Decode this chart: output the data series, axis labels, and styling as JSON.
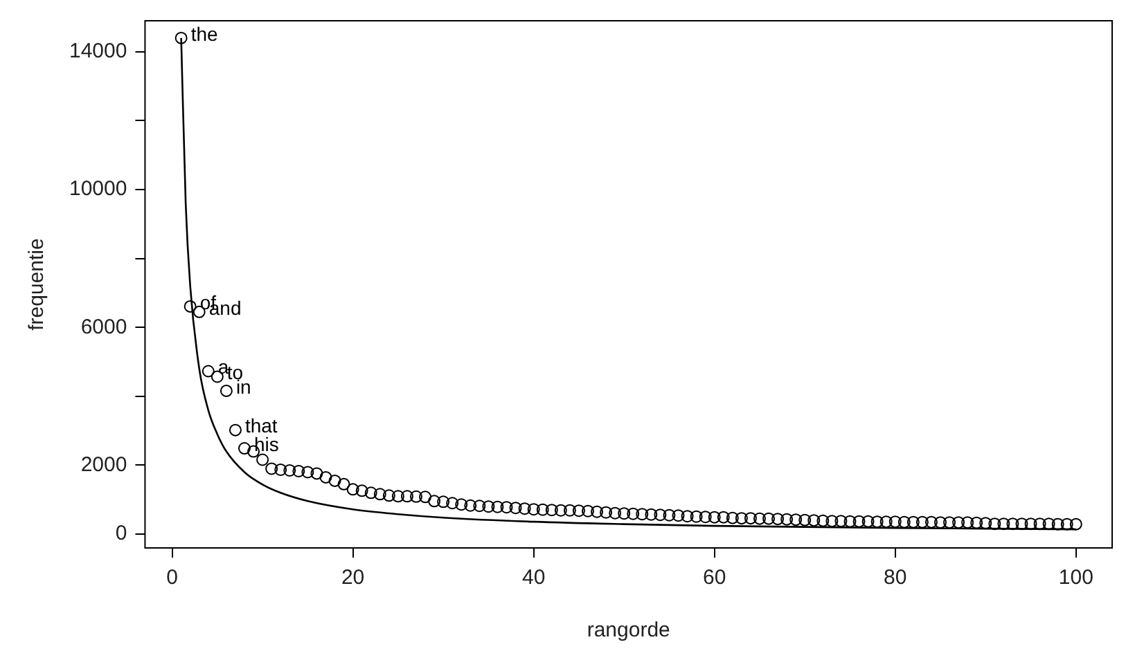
{
  "chart_data": {
    "type": "scatter",
    "xlabel": "rangorde",
    "ylabel": "frequentie",
    "xlim": [
      -3,
      104
    ],
    "xticks": [
      0,
      20,
      40,
      60,
      80,
      100
    ],
    "ylim": [
      -400,
      14900
    ],
    "yticks": [
      0,
      2000,
      {
        "value": 4000,
        "label": null
      },
      6000,
      {
        "value": 8000,
        "label": null
      },
      10000,
      {
        "value": 12000,
        "label": null
      },
      14000
    ],
    "grid": false,
    "legend": false,
    "marker": "circle",
    "series": [
      {
        "type": "scatter",
        "color": "#000000",
        "x": [
          1,
          2,
          3,
          4,
          5,
          6,
          7,
          8,
          9,
          10,
          11,
          12,
          13,
          14,
          15,
          16,
          17,
          18,
          19,
          20,
          21,
          22,
          23,
          24,
          25,
          26,
          27,
          28,
          29,
          30,
          31,
          32,
          33,
          34,
          35,
          36,
          37,
          38,
          39,
          40,
          41,
          42,
          43,
          44,
          45,
          46,
          47,
          48,
          49,
          50,
          51,
          52,
          53,
          54,
          55,
          56,
          57,
          58,
          59,
          60,
          61,
          62,
          63,
          64,
          65,
          66,
          67,
          68,
          69,
          70,
          71,
          72,
          73,
          74,
          75,
          76,
          77,
          78,
          79,
          80,
          81,
          82,
          83,
          84,
          85,
          86,
          87,
          88,
          89,
          90,
          91,
          92,
          93,
          94,
          95,
          96,
          97,
          98,
          99,
          100
        ],
        "values": [
          14400,
          6610,
          6450,
          4730,
          4570,
          4160,
          3020,
          2490,
          2400,
          2160,
          1900,
          1870,
          1850,
          1830,
          1800,
          1760,
          1650,
          1550,
          1450,
          1300,
          1260,
          1200,
          1160,
          1120,
          1100,
          1100,
          1090,
          1080,
          960,
          940,
          900,
          860,
          830,
          820,
          800,
          790,
          780,
          760,
          740,
          720,
          710,
          700,
          690,
          690,
          680,
          670,
          650,
          630,
          610,
          600,
          590,
          580,
          570,
          560,
          550,
          540,
          520,
          510,
          500,
          490,
          490,
          470,
          460,
          460,
          450,
          450,
          440,
          430,
          420,
          410,
          400,
          390,
          380,
          380,
          370,
          370,
          370,
          360,
          360,
          360,
          350,
          350,
          350,
          350,
          340,
          340,
          340,
          340,
          330,
          320,
          300,
          300,
          300,
          300,
          300,
          300,
          300,
          290,
          290,
          290
        ]
      },
      {
        "type": "line",
        "color": "#000000",
        "marker": "none",
        "line_style": "solid",
        "x": [
          1,
          1.5,
          2,
          3,
          4,
          5,
          6,
          8,
          10,
          12,
          15,
          20,
          25,
          30,
          40,
          50,
          60,
          70,
          80,
          90,
          100
        ],
        "values": [
          14400,
          9600,
          7200,
          4800,
          3600,
          2900,
          2400,
          1800,
          1440,
          1200,
          960,
          720,
          580,
          480,
          360,
          290,
          240,
          210,
          180,
          160,
          140
        ]
      }
    ],
    "annotations": [
      {
        "text": "the",
        "x": 1,
        "y": 14400
      },
      {
        "text": "of",
        "x": 2,
        "y": 6610
      },
      {
        "text": "and",
        "x": 3,
        "y": 6450
      },
      {
        "text": "a",
        "x": 4,
        "y": 4730
      },
      {
        "text": "to",
        "x": 5,
        "y": 4570
      },
      {
        "text": "in",
        "x": 6,
        "y": 4160
      },
      {
        "text": "that",
        "x": 7,
        "y": 3020
      },
      {
        "text": "his",
        "x": 8,
        "y": 2490
      }
    ]
  }
}
